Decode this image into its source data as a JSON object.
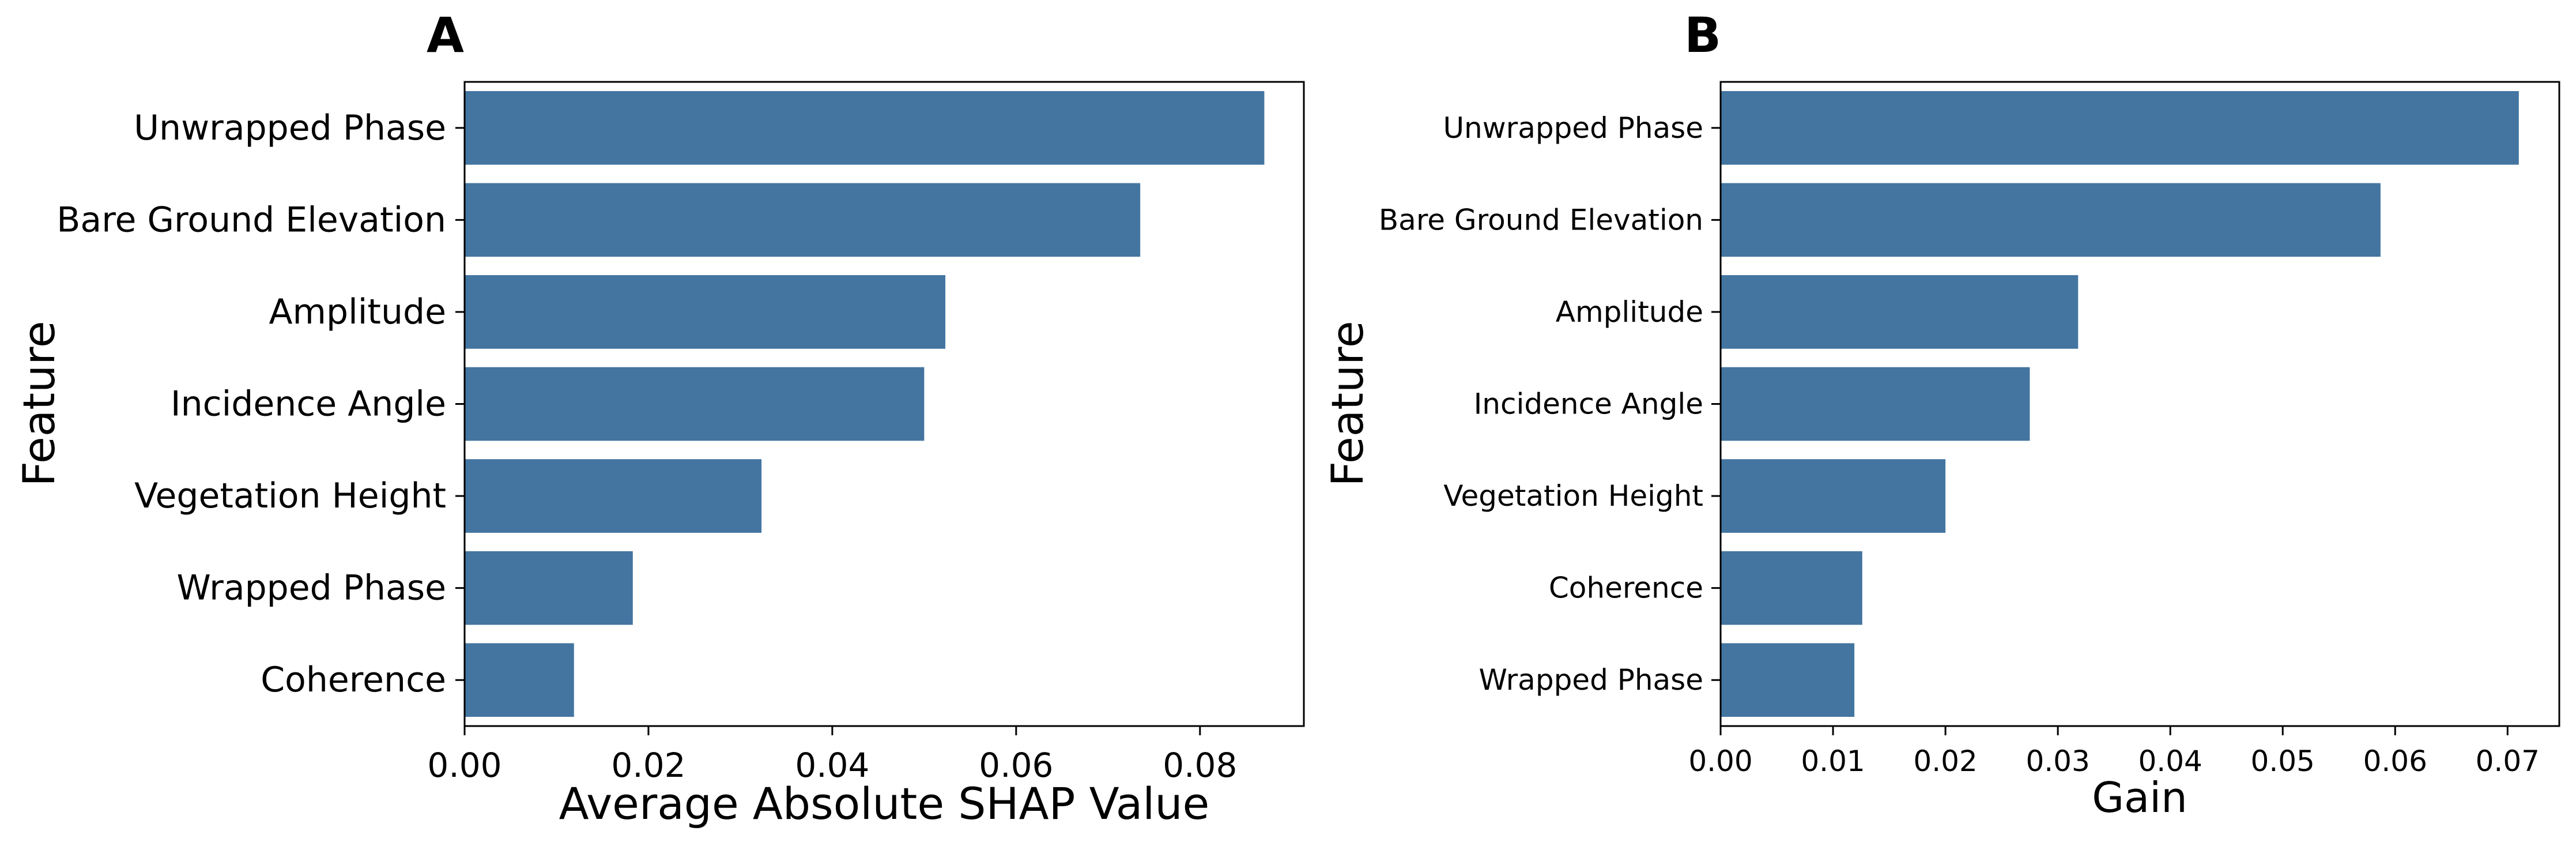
{
  "chart_data": [
    {
      "type": "bar",
      "orientation": "horizontal",
      "panel_label": "A",
      "categories": [
        "Unwrapped Phase",
        "Bare Ground Elevation",
        "Amplitude",
        "Incidence Angle",
        "Vegetation Height",
        "Wrapped Phase",
        "Coherence"
      ],
      "values": [
        0.087,
        0.0735,
        0.0523,
        0.05,
        0.0323,
        0.0183,
        0.0119
      ],
      "xlabel": "Average Absolute SHAP Value",
      "ylabel": "Feature",
      "xlim": [
        0,
        0.0913
      ],
      "xticks": [
        "0.00",
        "0.02",
        "0.04",
        "0.06",
        "0.08"
      ],
      "xtick_values": [
        0,
        0.02,
        0.04,
        0.06,
        0.08
      ],
      "grid": false,
      "bar_color": "#4375a0"
    },
    {
      "type": "bar",
      "orientation": "horizontal",
      "panel_label": "B",
      "categories": [
        "Unwrapped Phase",
        "Bare Ground Elevation",
        "Amplitude",
        "Incidence Angle",
        "Vegetation Height",
        "Coherence",
        "Wrapped Phase"
      ],
      "values": [
        0.071,
        0.0587,
        0.0318,
        0.0275,
        0.02,
        0.0126,
        0.0119
      ],
      "xlabel": "Gain",
      "ylabel": "Feature",
      "xlim": [
        0,
        0.0746
      ],
      "xticks": [
        "0.00",
        "0.01",
        "0.02",
        "0.03",
        "0.04",
        "0.05",
        "0.06",
        "0.07"
      ],
      "xtick_values": [
        0,
        0.01,
        0.02,
        0.03,
        0.04,
        0.05,
        0.06,
        0.07
      ],
      "grid": false,
      "bar_color": "#4375a0"
    }
  ]
}
